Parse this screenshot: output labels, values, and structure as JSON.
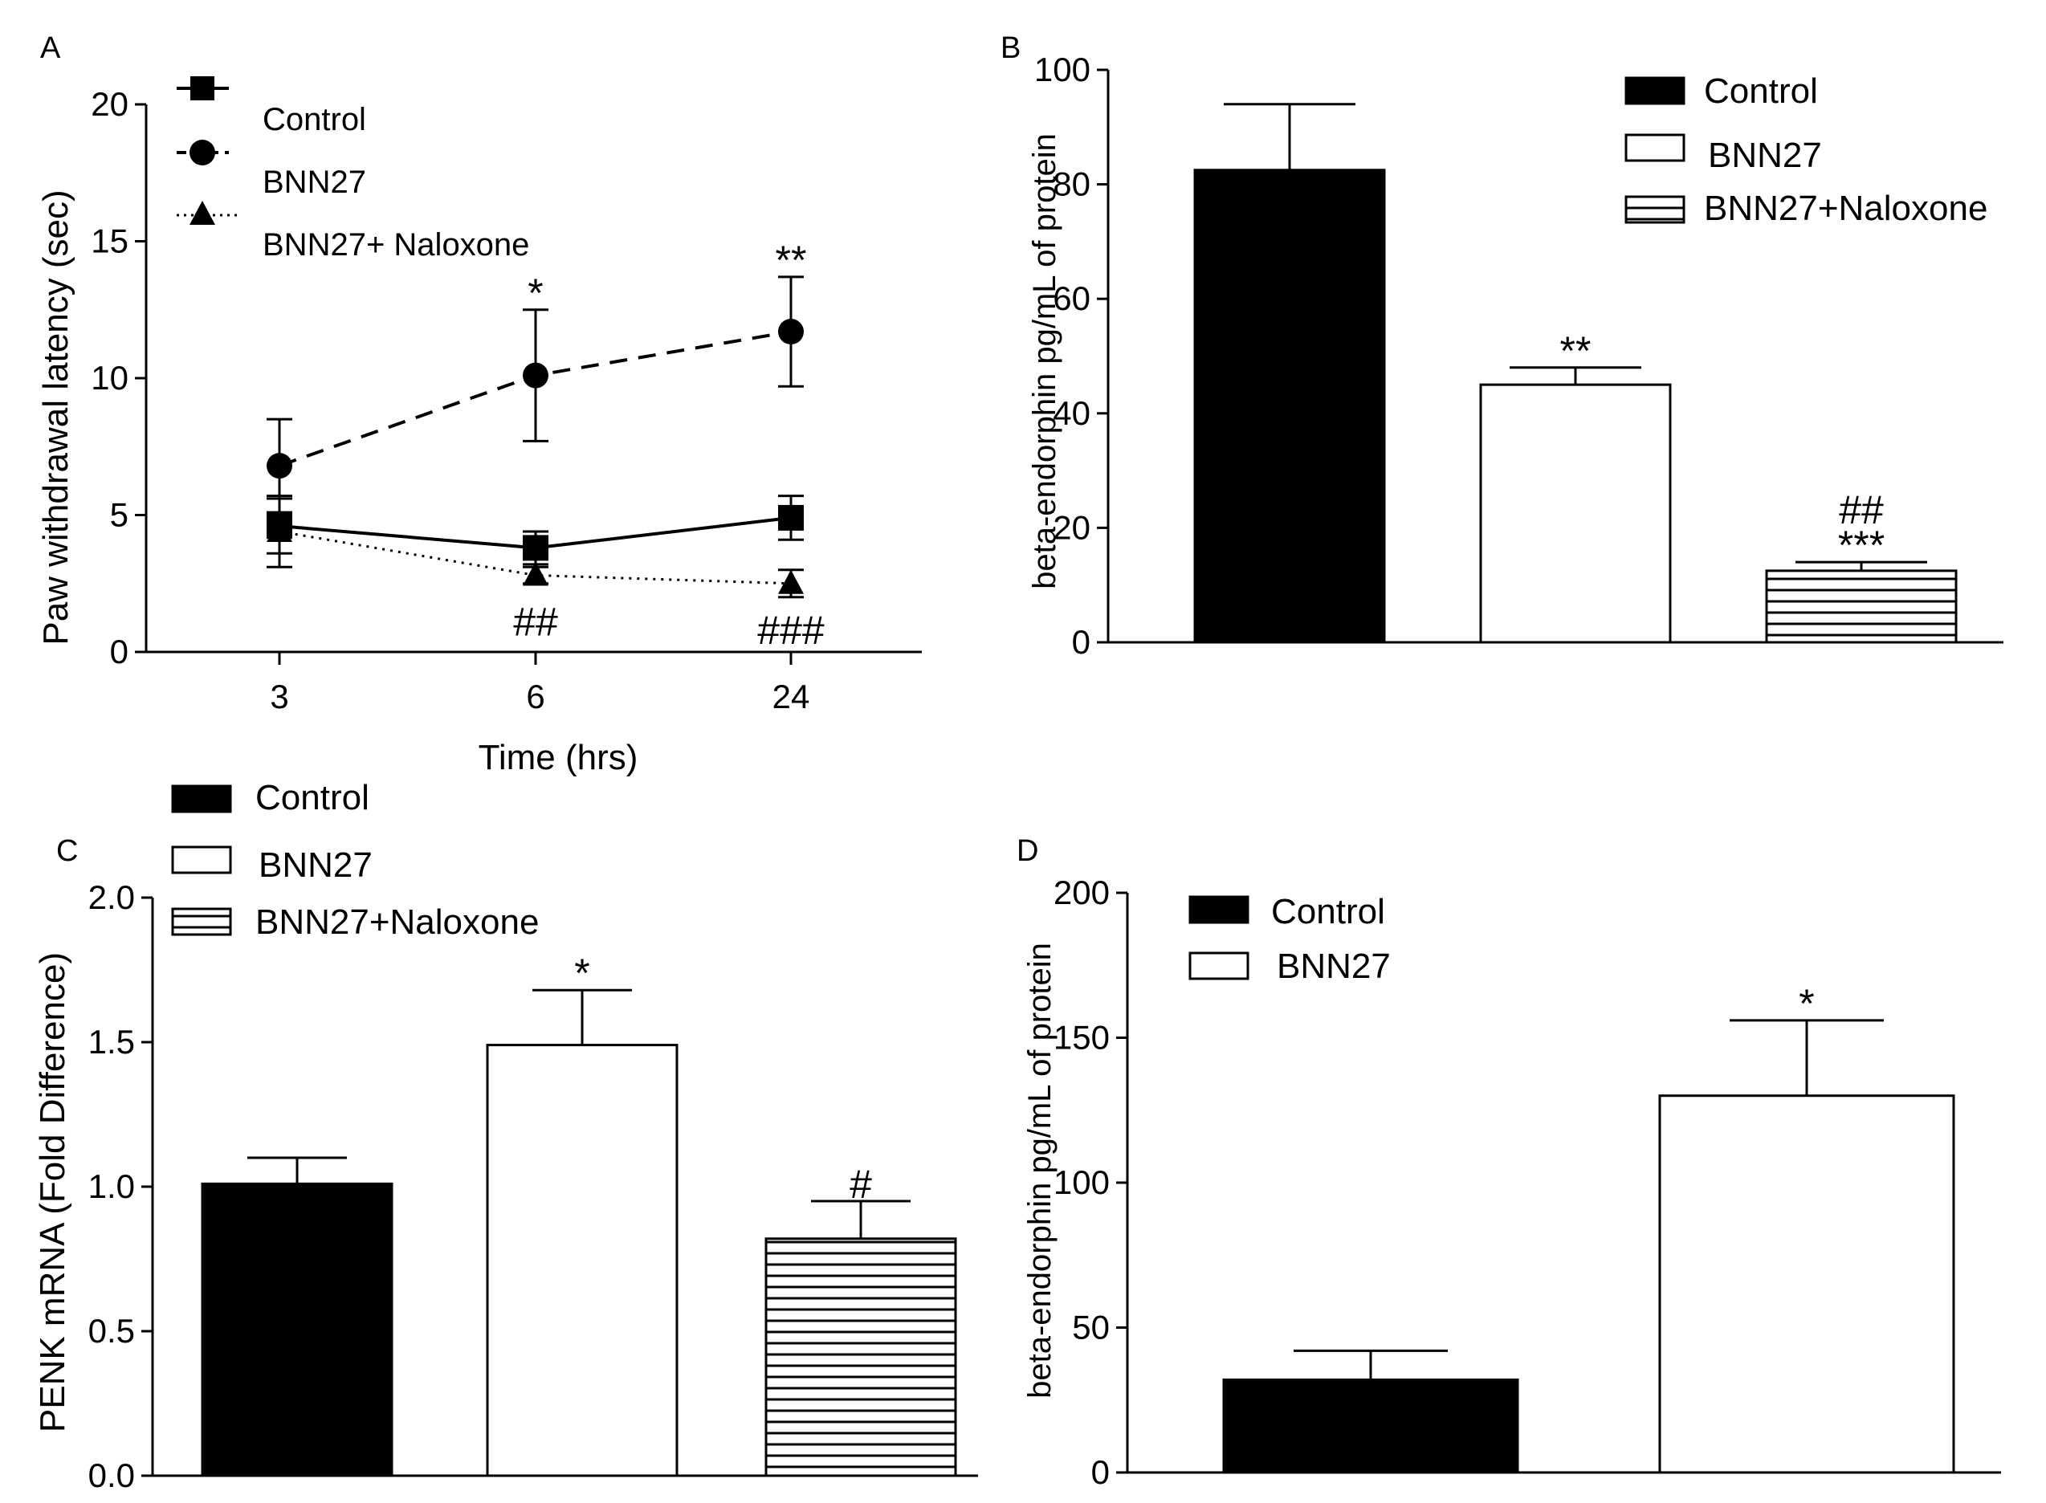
{
  "colors": {
    "ink": "#000000",
    "paper": "#ffffff"
  },
  "chart_data": [
    {
      "panel_label": "A",
      "type": "line",
      "xlabel": "Time (hrs)",
      "ylabel": "Paw withdrawal latency   (sec)",
      "categories": [
        "3",
        "6",
        "24"
      ],
      "ylim": [
        0,
        20
      ],
      "yticks": [
        "0",
        "5",
        "10",
        "15",
        "20"
      ],
      "series": [
        {
          "name": "Control",
          "marker": "square",
          "line": "solid",
          "values": [
            4.6,
            3.8,
            4.9
          ],
          "errors": [
            1.0,
            0.6,
            0.8
          ]
        },
        {
          "name": "BNN27",
          "marker": "circle",
          "line": "dashed",
          "values": [
            6.8,
            10.1,
            11.7
          ],
          "errors": [
            1.7,
            2.4,
            2.0
          ]
        },
        {
          "name": "BNN27+ Naloxone",
          "marker": "triangle",
          "line": "dotted",
          "values": [
            4.4,
            2.8,
            2.5
          ],
          "errors": [
            1.3,
            0.3,
            0.5
          ]
        }
      ],
      "annotations": [
        {
          "text": "*",
          "x": "6",
          "series": "BNN27"
        },
        {
          "text": "**",
          "x": "24",
          "series": "BNN27"
        },
        {
          "text": "##",
          "x": "6",
          "series": "BNN27+ Naloxone"
        },
        {
          "text": "###",
          "x": "24",
          "series": "BNN27+ Naloxone"
        }
      ]
    },
    {
      "panel_label": "B",
      "type": "bar",
      "ylabel": "beta-endorphin pg/mL of protein",
      "categories": [
        "Control",
        "BNN27",
        "BNN27+Naloxone"
      ],
      "ylim": [
        0,
        100
      ],
      "yticks": [
        "0",
        "20",
        "40",
        "60",
        "80",
        "100"
      ],
      "values": [
        82.5,
        45.0,
        12.5
      ],
      "errors": [
        11.5,
        3.0,
        1.5
      ],
      "fills": [
        "solid",
        "open",
        "hatched"
      ],
      "annotations": [
        {
          "bar": 1,
          "lines": [
            "**"
          ]
        },
        {
          "bar": 2,
          "lines": [
            "##",
            "***"
          ]
        }
      ]
    },
    {
      "panel_label": "C",
      "type": "bar",
      "ylabel": "PENK mRNA (Fold Difference)",
      "categories": [
        "Control",
        "BNN27",
        "BNN27+Naloxone"
      ],
      "ylim": [
        0,
        2
      ],
      "yticks": [
        "0.0",
        "0.5",
        "1.0",
        "1.5",
        "2.0"
      ],
      "values": [
        1.01,
        1.49,
        0.82
      ],
      "errors": [
        0.09,
        0.19,
        0.13
      ],
      "fills": [
        "solid",
        "open",
        "hatched"
      ],
      "annotations": [
        {
          "bar": 1,
          "lines": [
            "*"
          ]
        },
        {
          "bar": 2,
          "lines": [
            "#"
          ]
        }
      ]
    },
    {
      "panel_label": "D",
      "type": "bar",
      "ylabel": "beta-endorphin pg/mL of protein",
      "categories": [
        "Control",
        "BNN27"
      ],
      "ylim": [
        0,
        200
      ],
      "yticks": [
        "0",
        "50",
        "100",
        "150",
        "200"
      ],
      "values": [
        32,
        130
      ],
      "errors": [
        10,
        26
      ],
      "fills": [
        "solid",
        "open"
      ],
      "annotations": [
        {
          "bar": 1,
          "lines": [
            "*"
          ]
        }
      ]
    }
  ]
}
